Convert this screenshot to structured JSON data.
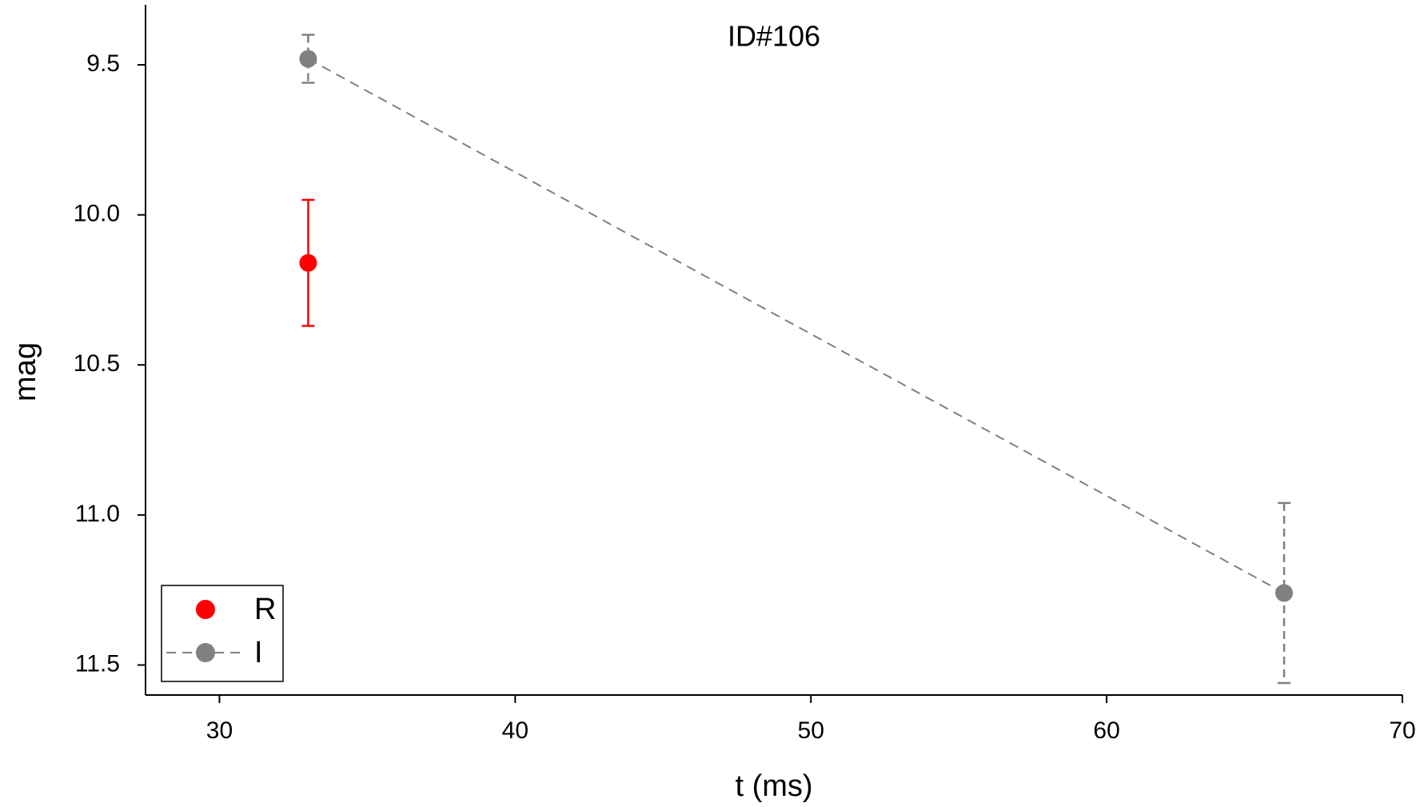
{
  "chart_data": {
    "type": "scatter",
    "title": "ID#106",
    "x_label": "t (ms)",
    "y_label": "mag",
    "xlim": [
      27.5,
      70
    ],
    "xticks": [
      30,
      40,
      50,
      60,
      70
    ],
    "ylim": [
      11.6,
      9.3
    ],
    "y_inverted": true,
    "yticks": [
      9.5,
      {
        "value": 10,
        "label": "10.0"
      },
      10.5,
      {
        "value": 11,
        "label": "11.0"
      },
      11.5
    ],
    "legend": "lower left",
    "series": [
      {
        "name": "R",
        "color": "#ff0000",
        "line_style": "none",
        "x": [
          33
        ],
        "values": [
          10.16
        ],
        "errors": [
          0.21
        ]
      },
      {
        "name": "I",
        "color": "#808080",
        "line_style": "dash",
        "x": [
          33,
          66
        ],
        "values": [
          9.48,
          11.26
        ],
        "errors": [
          0.08,
          0.3
        ]
      }
    ]
  }
}
